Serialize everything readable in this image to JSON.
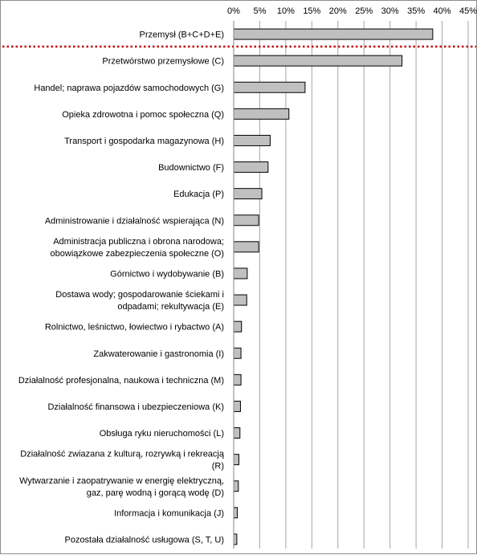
{
  "chart_data": {
    "type": "bar",
    "orientation": "horizontal",
    "title": "",
    "xlabel": "",
    "ylabel": "",
    "xlim": [
      0,
      45
    ],
    "x_ticks": [
      "0%",
      "5%",
      "10%",
      "15%",
      "20%",
      "25%",
      "30%",
      "35%",
      "40%",
      "45%"
    ],
    "grid": "vertical",
    "bar_color": "#c0c0c0",
    "bar_edge_color": "#000000",
    "separator_color": "#c00000",
    "categories": [
      [
        "Przemysł (B+C+D+E)"
      ],
      [
        "Przetwórstwo przemysłowe (C)"
      ],
      [
        "Handel; naprawa pojazdów samochodowych (G)"
      ],
      [
        "Opieka zdrowotna  i pomoc społeczna (Q)"
      ],
      [
        "Transport  i gospodarka  magazynowa (H)"
      ],
      [
        "Budownictwo (F)"
      ],
      [
        "Edukacja (P)"
      ],
      [
        "Administrowanie i działalność  wspierająca (N)"
      ],
      [
        "Administracja publiczna i obrona narodowa;",
        "obowiązkowe zabezpieczenia społeczne (O)"
      ],
      [
        "Górnictwo i wydobywanie (B)"
      ],
      [
        "Dostawa wody; gospodarowanie  ściekami i",
        "odpadami;  rekultywacja (E)"
      ],
      [
        "Rolnictwo, leśnictwo, łowiectwo i rybactwo (A)"
      ],
      [
        "Zakwaterowanie i gastronomia (I)"
      ],
      [
        "Działalność profesjonalna,  naukowa i techniczna (M)"
      ],
      [
        "Działalność finansowa i ubezpieczeniowa (K)"
      ],
      [
        "Obsługa ryku nieruchomości (L)"
      ],
      [
        "Działalność zwiazana z kulturą, rozrywką i rekreacją",
        "(R)"
      ],
      [
        "Wytwarzanie i zaopatrywanie  w energię elektryczną,",
        "gaz, parę wodną i gorącą wodę (D)"
      ],
      [
        "Informacja i komunikacja (J)"
      ],
      [
        "Pozostała działalność usługowa (S, T, U)"
      ]
    ],
    "values": [
      38.2,
      32.3,
      13.7,
      10.6,
      7.0,
      6.6,
      5.4,
      4.8,
      4.8,
      2.6,
      2.5,
      1.5,
      1.4,
      1.4,
      1.3,
      1.2,
      1.0,
      0.9,
      0.7,
      0.6
    ]
  }
}
